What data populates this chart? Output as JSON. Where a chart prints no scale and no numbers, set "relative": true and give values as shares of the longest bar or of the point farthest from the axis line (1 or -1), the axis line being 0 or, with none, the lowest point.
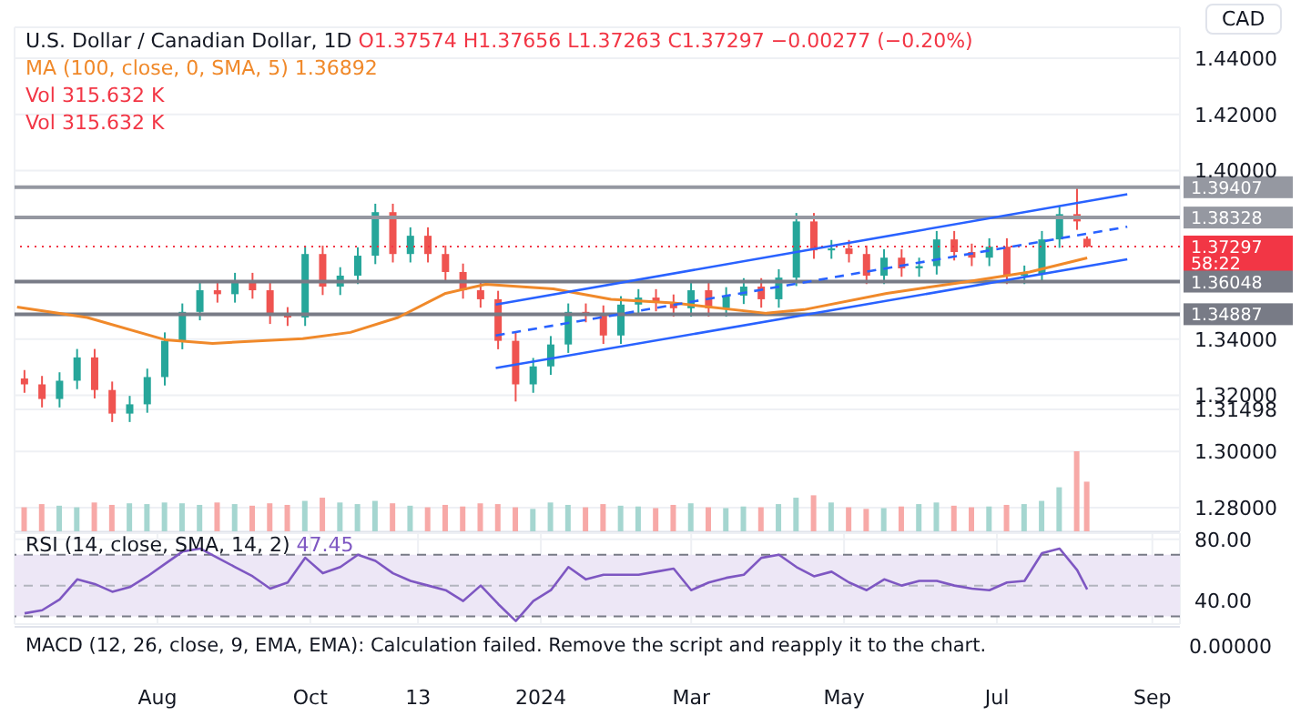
{
  "chart_data": [
    {
      "type": "candlestick",
      "title": "U.S. Dollar / Canadian Dollar, 1D",
      "ylabel": "CAD",
      "legend": "top left",
      "grid": true,
      "tick_labels": "y",
      "annotations": [
        "O1.37574 H1.37656 L1.37263 C1.37297 −0.00277 (−0.20%)",
        "1.36892",
        "58:22"
      ],
      "x": [
        "2023-06-09",
        "2023-06-16",
        "2023-06-23",
        "2023-06-30",
        "2023-07-07",
        "2023-07-14",
        "2023-07-21",
        "2023-07-28",
        "2023-08-04",
        "2023-08-11",
        "2023-08-18",
        "2023-08-25",
        "2023-09-01",
        "2023-09-08",
        "2023-09-15",
        "2023-09-22",
        "2023-09-29",
        "2023-10-06",
        "2023-10-13",
        "2023-10-20",
        "2023-10-27",
        "2023-11-03",
        "2023-11-10",
        "2023-11-17",
        "2023-11-24",
        "2023-12-01",
        "2023-12-08",
        "2023-12-15",
        "2023-12-22",
        "2023-12-29",
        "2024-01-05",
        "2024-01-12",
        "2024-01-19",
        "2024-01-26",
        "2024-02-02",
        "2024-02-09",
        "2024-02-16",
        "2024-02-23",
        "2024-03-01",
        "2024-03-08",
        "2024-03-15",
        "2024-03-22",
        "2024-03-29",
        "2024-04-05",
        "2024-04-12",
        "2024-04-19",
        "2024-04-26",
        "2024-05-03",
        "2024-05-10",
        "2024-05-17",
        "2024-05-24",
        "2024-05-31",
        "2024-06-07",
        "2024-06-14",
        "2024-06-21",
        "2024-06-28",
        "2024-07-05",
        "2024-07-12",
        "2024-07-19",
        "2024-07-26",
        "2024-08-02",
        "2024-08-06"
      ],
      "ohlc": [
        [
          1.326,
          1.329,
          1.3209,
          1.3239
        ],
        [
          1.3239,
          1.3269,
          1.3157,
          1.3187
        ],
        [
          1.3187,
          1.3282,
          1.3157,
          1.3252
        ],
        [
          1.3252,
          1.3365,
          1.3222,
          1.3335
        ],
        [
          1.3335,
          1.3365,
          1.3189,
          1.3219
        ],
        [
          1.3219,
          1.3249,
          1.3105,
          1.3135
        ],
        [
          1.3135,
          1.3198,
          1.3105,
          1.3168
        ],
        [
          1.3168,
          1.3295,
          1.3138,
          1.3265
        ],
        [
          1.3265,
          1.3424,
          1.3235,
          1.3394
        ],
        [
          1.3394,
          1.3527,
          1.3364,
          1.3497
        ],
        [
          1.3497,
          1.3604,
          1.3467,
          1.3574
        ],
        [
          1.3574,
          1.3604,
          1.353,
          1.356
        ],
        [
          1.356,
          1.3636,
          1.353,
          1.3606
        ],
        [
          1.3606,
          1.3636,
          1.3544,
          1.3574
        ],
        [
          1.3574,
          1.3604,
          1.3454,
          1.3484
        ],
        [
          1.3484,
          1.3514,
          1.3447,
          1.3477
        ],
        [
          1.3477,
          1.3733,
          1.3447,
          1.3703
        ],
        [
          1.3703,
          1.3733,
          1.3557,
          1.3587
        ],
        [
          1.3587,
          1.3656,
          1.3557,
          1.3626
        ],
        [
          1.3626,
          1.3727,
          1.3596,
          1.3697
        ],
        [
          1.3697,
          1.3882,
          1.3667,
          1.3852
        ],
        [
          1.3852,
          1.3882,
          1.3673,
          1.3703
        ],
        [
          1.3703,
          1.3798,
          1.3673,
          1.3768
        ],
        [
          1.3768,
          1.3798,
          1.3673,
          1.3703
        ],
        [
          1.3703,
          1.3733,
          1.3609,
          1.3639
        ],
        [
          1.3639,
          1.3669,
          1.3544,
          1.3574
        ],
        [
          1.3574,
          1.3604,
          1.3512,
          1.3542
        ],
        [
          1.3542,
          1.3572,
          1.3364,
          1.3394
        ],
        [
          1.3394,
          1.3424,
          1.3178,
          1.3239
        ],
        [
          1.3239,
          1.3333,
          1.3209,
          1.3303
        ],
        [
          1.3303,
          1.3411,
          1.3273,
          1.3381
        ],
        [
          1.3381,
          1.3527,
          1.3351,
          1.3497
        ],
        [
          1.3497,
          1.3527,
          1.346,
          1.349
        ],
        [
          1.349,
          1.352,
          1.3383,
          1.3413
        ],
        [
          1.3413,
          1.3553,
          1.3383,
          1.3523
        ],
        [
          1.3523,
          1.3578,
          1.3493,
          1.3548
        ],
        [
          1.3548,
          1.3578,
          1.3499,
          1.3529
        ],
        [
          1.3529,
          1.3559,
          1.348,
          1.351
        ],
        [
          1.351,
          1.3604,
          1.348,
          1.3574
        ],
        [
          1.3574,
          1.3604,
          1.348,
          1.351
        ],
        [
          1.351,
          1.3585,
          1.348,
          1.3555
        ],
        [
          1.3555,
          1.3617,
          1.3525,
          1.3587
        ],
        [
          1.3587,
          1.3617,
          1.3512,
          1.3542
        ],
        [
          1.3542,
          1.3649,
          1.3512,
          1.3619
        ],
        [
          1.3619,
          1.3849,
          1.3589,
          1.3819
        ],
        [
          1.3819,
          1.3849,
          1.3686,
          1.3716
        ],
        [
          1.3716,
          1.3753,
          1.3686,
          1.3723
        ],
        [
          1.3723,
          1.3753,
          1.3673,
          1.3703
        ],
        [
          1.3703,
          1.3733,
          1.3596,
          1.3626
        ],
        [
          1.3626,
          1.372,
          1.3596,
          1.369
        ],
        [
          1.369,
          1.372,
          1.3622,
          1.3652
        ],
        [
          1.3652,
          1.369,
          1.3622,
          1.366
        ],
        [
          1.366,
          1.3785,
          1.363,
          1.3755
        ],
        [
          1.3755,
          1.3785,
          1.368,
          1.371
        ],
        [
          1.371,
          1.374,
          1.366,
          1.369
        ],
        [
          1.369,
          1.3759,
          1.366,
          1.3729
        ],
        [
          1.3729,
          1.3759,
          1.3596,
          1.3626
        ],
        [
          1.3626,
          1.3662,
          1.3596,
          1.3632
        ],
        [
          1.3632,
          1.3785,
          1.3602,
          1.3755
        ],
        [
          1.3755,
          1.3875,
          1.3725,
          1.3845
        ],
        [
          1.3845,
          1.3946,
          1.3789,
          1.3819
        ],
        [
          1.37574,
          1.37656,
          1.37263,
          1.37297
        ]
      ],
      "colors": [
        "#ef5350",
        "#ef5350",
        "#26a69a",
        "#26a69a",
        "#ef5350",
        "#ef5350",
        "#26a69a",
        "#26a69a",
        "#26a69a",
        "#26a69a",
        "#26a69a",
        "#ef5350",
        "#26a69a",
        "#ef5350",
        "#ef5350",
        "#ef5350",
        "#26a69a",
        "#ef5350",
        "#26a69a",
        "#26a69a",
        "#26a69a",
        "#ef5350",
        "#26a69a",
        "#ef5350",
        "#ef5350",
        "#ef5350",
        "#ef5350",
        "#ef5350",
        "#ef5350",
        "#26a69a",
        "#26a69a",
        "#26a69a",
        "#ef5350",
        "#ef5350",
        "#26a69a",
        "#26a69a",
        "#ef5350",
        "#ef5350",
        "#26a69a",
        "#ef5350",
        "#26a69a",
        "#26a69a",
        "#ef5350",
        "#26a69a",
        "#26a69a",
        "#ef5350",
        "#26a69a",
        "#ef5350",
        "#ef5350",
        "#26a69a",
        "#ef5350",
        "#26a69a",
        "#26a69a",
        "#ef5350",
        "#ef5350",
        "#26a69a",
        "#ef5350",
        "#26a69a",
        "#26a69a",
        "#26a69a",
        "#ef5350",
        "#ef5350"
      ],
      "series": [
        {
          "name": "MA (100, close, 0, SMA, 5)",
          "type": "line",
          "color": "#f0892a",
          "x": [
            "2023-06-06",
            "2023-07-04",
            "2023-08-04",
            "2023-08-23",
            "2023-09-28",
            "2023-10-17",
            "2023-11-05",
            "2023-11-24",
            "2023-12-10",
            "2024-01-06",
            "2024-01-29",
            "2024-02-23",
            "2024-03-31",
            "2024-04-15",
            "2024-05-18",
            "2024-06-20",
            "2024-07-14",
            "2024-08-06"
          ],
          "values": [
            1.3514,
            1.3477,
            1.3398,
            1.3385,
            1.3402,
            1.3424,
            1.3477,
            1.3563,
            1.3595,
            1.3579,
            1.3542,
            1.3529,
            1.3492,
            1.3505,
            1.3563,
            1.3606,
            1.3639,
            1.36892
          ]
        },
        {
          "type": "line",
          "color": "#2962ff",
          "line_style": "solid",
          "x": [
            "2023-12-14",
            "2024-08-22"
          ],
          "values": [
            1.3523,
            1.3916
          ]
        },
        {
          "type": "line",
          "color": "#2962ff",
          "line_style": "dashed",
          "x": [
            "2023-12-14",
            "2024-08-22"
          ],
          "values": [
            1.3413,
            1.38
          ]
        },
        {
          "type": "line",
          "color": "#2962ff",
          "line_style": "solid",
          "x": [
            "2023-12-14",
            "2024-08-22"
          ],
          "values": [
            1.3297,
            1.3684
          ]
        }
      ],
      "ref_lines": [
        {
          "axis": "y",
          "value": 1.39407,
          "label": "1.39407",
          "color": "#9598a1",
          "line_style": "solid"
        },
        {
          "axis": "y",
          "value": 1.38328,
          "label": "1.38328",
          "color": "#9598a1",
          "line_style": "solid"
        },
        {
          "axis": "y",
          "value": 1.37297,
          "label": "1.37297",
          "color": "#f23645",
          "line_style": "dotted"
        },
        {
          "axis": "y",
          "value": 1.36048,
          "label": "1.36048",
          "color": "#787b86",
          "line_style": "solid"
        },
        {
          "axis": "y",
          "value": 1.34887,
          "label": "1.34887",
          "color": "#787b86",
          "line_style": "solid"
        }
      ],
      "xlim": [
        "2023-06-05",
        "2024-09-12"
      ],
      "xticks": [
        {
          "value": "2023-08-01",
          "label": null
        },
        {
          "value": "2023-10-01",
          "label": null
        },
        {
          "value": "2023-11-13",
          "label": null
        },
        {
          "value": "2024-01-01",
          "label": null
        },
        {
          "value": "2024-03-01",
          "label": null
        },
        {
          "value": "2024-05-01",
          "label": null
        },
        {
          "value": "2024-07-01",
          "label": null
        },
        {
          "value": "2024-09-01",
          "label": null
        }
      ],
      "ylim": [
        1.2716,
        1.451
      ],
      "yticks": [
        {
          "value": 1.28,
          "label": "1.28000"
        },
        {
          "value": 1.3,
          "label": "1.30000"
        },
        {
          "value": 1.31498,
          "label": "1.31498"
        },
        {
          "value": 1.32,
          "label": "1.32000"
        },
        {
          "value": 1.34,
          "label": "1.34000"
        },
        {
          "value": 1.4,
          "label": "1.40000"
        },
        {
          "value": 1.42,
          "label": "1.42000"
        },
        {
          "value": 1.44,
          "label": "1.44000"
        }
      ]
    },
    {
      "type": "bar",
      "relative": true,
      "annotations": [
        "Vol 315.632 K",
        "Vol 315.632 K"
      ],
      "x": [
        "2023-06-09",
        "2023-06-16",
        "2023-06-23",
        "2023-06-30",
        "2023-07-07",
        "2023-07-14",
        "2023-07-21",
        "2023-07-28",
        "2023-08-04",
        "2023-08-11",
        "2023-08-18",
        "2023-08-25",
        "2023-09-01",
        "2023-09-08",
        "2023-09-15",
        "2023-09-22",
        "2023-09-29",
        "2023-10-06",
        "2023-10-13",
        "2023-10-20",
        "2023-10-27",
        "2023-11-03",
        "2023-11-10",
        "2023-11-17",
        "2023-11-24",
        "2023-12-01",
        "2023-12-08",
        "2023-12-15",
        "2023-12-22",
        "2023-12-29",
        "2024-01-05",
        "2024-01-12",
        "2024-01-19",
        "2024-01-26",
        "2024-02-02",
        "2024-02-09",
        "2024-02-16",
        "2024-02-23",
        "2024-03-01",
        "2024-03-08",
        "2024-03-15",
        "2024-03-22",
        "2024-03-29",
        "2024-04-05",
        "2024-04-12",
        "2024-04-19",
        "2024-04-26",
        "2024-05-03",
        "2024-05-10",
        "2024-05-17",
        "2024-05-24",
        "2024-05-31",
        "2024-06-07",
        "2024-06-14",
        "2024-06-21",
        "2024-06-28",
        "2024-07-05",
        "2024-07-12",
        "2024-07-19",
        "2024-07-26",
        "2024-08-02",
        "2024-08-06"
      ],
      "values": [
        0.3,
        0.34,
        0.32,
        0.3,
        0.36,
        0.33,
        0.35,
        0.34,
        0.36,
        0.35,
        0.33,
        0.36,
        0.34,
        0.32,
        0.35,
        0.33,
        0.38,
        0.42,
        0.36,
        0.34,
        0.38,
        0.35,
        0.32,
        0.3,
        0.33,
        0.31,
        0.35,
        0.34,
        0.3,
        0.28,
        0.36,
        0.33,
        0.3,
        0.34,
        0.32,
        0.31,
        0.29,
        0.33,
        0.35,
        0.3,
        0.29,
        0.31,
        0.3,
        0.34,
        0.42,
        0.45,
        0.36,
        0.3,
        0.28,
        0.29,
        0.31,
        0.34,
        0.36,
        0.32,
        0.3,
        0.31,
        0.33,
        0.34,
        0.38,
        0.55,
        1.0,
        0.62
      ],
      "colors": [
        "#f7a9a7",
        "#f7a9a7",
        "#a5d6d0",
        "#a5d6d0",
        "#f7a9a7",
        "#f7a9a7",
        "#a5d6d0",
        "#a5d6d0",
        "#a5d6d0",
        "#a5d6d0",
        "#a5d6d0",
        "#f7a9a7",
        "#a5d6d0",
        "#f7a9a7",
        "#f7a9a7",
        "#f7a9a7",
        "#a5d6d0",
        "#f7a9a7",
        "#a5d6d0",
        "#a5d6d0",
        "#a5d6d0",
        "#f7a9a7",
        "#a5d6d0",
        "#f7a9a7",
        "#f7a9a7",
        "#f7a9a7",
        "#f7a9a7",
        "#f7a9a7",
        "#f7a9a7",
        "#a5d6d0",
        "#a5d6d0",
        "#a5d6d0",
        "#f7a9a7",
        "#f7a9a7",
        "#a5d6d0",
        "#a5d6d0",
        "#f7a9a7",
        "#f7a9a7",
        "#a5d6d0",
        "#f7a9a7",
        "#a5d6d0",
        "#a5d6d0",
        "#f7a9a7",
        "#a5d6d0",
        "#a5d6d0",
        "#f7a9a7",
        "#a5d6d0",
        "#f7a9a7",
        "#f7a9a7",
        "#a5d6d0",
        "#f7a9a7",
        "#a5d6d0",
        "#a5d6d0",
        "#f7a9a7",
        "#f7a9a7",
        "#a5d6d0",
        "#f7a9a7",
        "#a5d6d0",
        "#a5d6d0",
        "#a5d6d0",
        "#f7a9a7",
        "#f7a9a7"
      ],
      "xlim": [
        "2023-06-05",
        "2024-09-12"
      ]
    },
    {
      "type": "line",
      "title": "RSI (14, close, SMA, 14, 2)",
      "subtitle": "47.45",
      "grid": true,
      "annotations": [
        "MACD (12, 26, close, 9, EMA, EMA): Calculation failed. Remove the script and reapply it to the chart.",
        "0.00000"
      ],
      "x": [
        "2023-06-09",
        "2023-06-16",
        "2023-06-23",
        "2023-06-30",
        "2023-07-07",
        "2023-07-14",
        "2023-07-21",
        "2023-07-28",
        "2023-08-04",
        "2023-08-11",
        "2023-08-18",
        "2023-08-25",
        "2023-09-01",
        "2023-09-08",
        "2023-09-15",
        "2023-09-22",
        "2023-09-29",
        "2023-10-06",
        "2023-10-13",
        "2023-10-20",
        "2023-10-27",
        "2023-11-03",
        "2023-11-10",
        "2023-11-17",
        "2023-11-24",
        "2023-12-01",
        "2023-12-08",
        "2023-12-15",
        "2023-12-22",
        "2023-12-29",
        "2024-01-05",
        "2024-01-12",
        "2024-01-19",
        "2024-01-26",
        "2024-02-02",
        "2024-02-09",
        "2024-02-16",
        "2024-02-23",
        "2024-03-01",
        "2024-03-08",
        "2024-03-15",
        "2024-03-22",
        "2024-03-29",
        "2024-04-05",
        "2024-04-12",
        "2024-04-19",
        "2024-04-26",
        "2024-05-03",
        "2024-05-10",
        "2024-05-17",
        "2024-05-24",
        "2024-05-31",
        "2024-06-07",
        "2024-06-14",
        "2024-06-21",
        "2024-06-28",
        "2024-07-05",
        "2024-07-12",
        "2024-07-19",
        "2024-07-26",
        "2024-08-02",
        "2024-08-06"
      ],
      "series": [
        {
          "color": "#7e57c2",
          "values": [
            32,
            34,
            41,
            54,
            51,
            46,
            49,
            56,
            64,
            72,
            74,
            68,
            62,
            56,
            48,
            52,
            68,
            58,
            62,
            70,
            66,
            58,
            53,
            50,
            47,
            40,
            50,
            38,
            27,
            40,
            47,
            62,
            54,
            57,
            57,
            57,
            59,
            61,
            47,
            52,
            55,
            57,
            68,
            70,
            62,
            56,
            59,
            52,
            47,
            54,
            50,
            53,
            53,
            50,
            48,
            47,
            52,
            53,
            71,
            74,
            60,
            47.45
          ]
        }
      ],
      "ref_lines": [
        {
          "axis": "y",
          "value": 70,
          "label": null,
          "color": "#787b86",
          "line_style": "dashed"
        },
        {
          "axis": "y",
          "value": 50,
          "label": null,
          "color": "#b2b5be",
          "line_style": "dashed"
        },
        {
          "axis": "y",
          "value": 30,
          "label": null,
          "color": "#787b86",
          "line_style": "dashed"
        }
      ],
      "bands": [
        {
          "axis": "y",
          "from": 30,
          "to": 70,
          "label": null,
          "color": "#ede7f6"
        }
      ],
      "xlim": [
        "2023-06-05",
        "2024-09-12"
      ],
      "xticks": [
        {
          "value": "2023-08-01",
          "label": "Aug"
        },
        {
          "value": "2023-10-01",
          "label": "Oct"
        },
        {
          "value": "2023-11-13",
          "label": "13"
        },
        {
          "value": "2024-01-01",
          "label": "2024"
        },
        {
          "value": "2024-03-01",
          "label": "Mar"
        },
        {
          "value": "2024-05-01",
          "label": "May"
        },
        {
          "value": "2024-07-01",
          "label": "Jul"
        },
        {
          "value": "2024-09-01",
          "label": "Sep"
        }
      ],
      "ylim": [
        25,
        84
      ],
      "yticks": [
        {
          "value": 40,
          "label": "40.00"
        },
        {
          "value": 80,
          "label": "80.00"
        }
      ]
    }
  ]
}
